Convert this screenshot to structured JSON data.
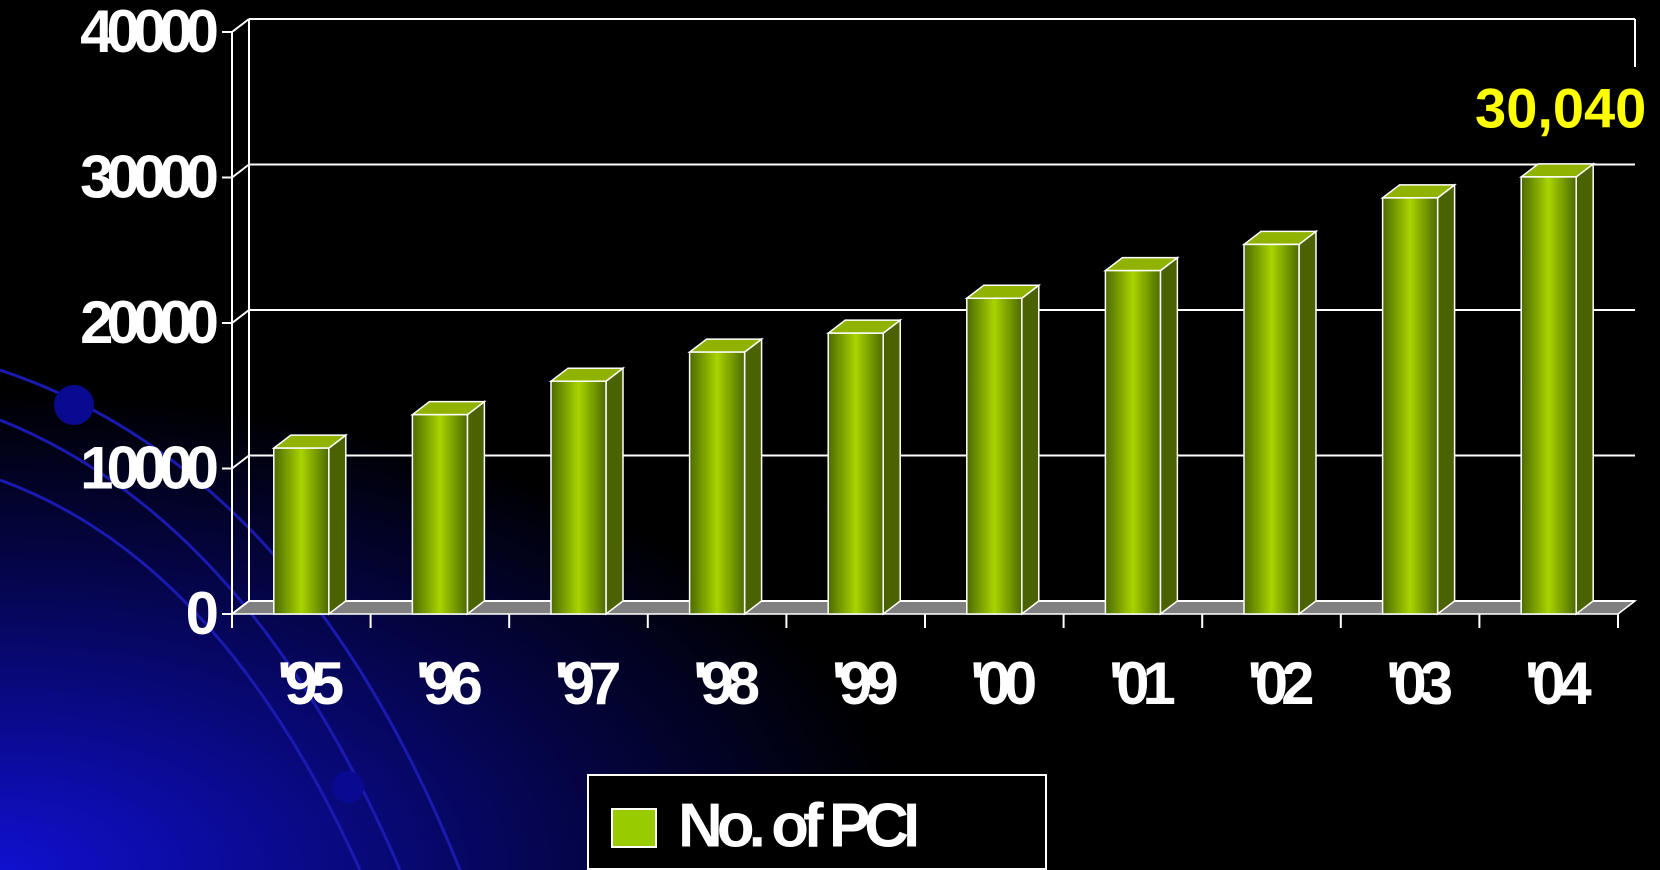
{
  "chart_data": {
    "type": "bar",
    "categories": [
      "'95",
      "'96",
      "'97",
      "'98",
      "'99",
      "'00",
      "'01",
      "'02",
      "'03",
      "'04"
    ],
    "series": [
      {
        "name": "No. of PCI",
        "color": "#99cc00",
        "values": [
          11400,
          13700,
          16000,
          18000,
          19300,
          21700,
          23600,
          25400,
          28600,
          30040
        ],
        "value_labels": [
          null,
          null,
          null,
          null,
          null,
          null,
          null,
          null,
          null,
          "30,040"
        ]
      }
    ],
    "ylim": [
      0,
      40000
    ],
    "yticks": [
      0,
      10000,
      20000,
      30000,
      40000
    ],
    "grid": true,
    "legend": "bottom"
  }
}
